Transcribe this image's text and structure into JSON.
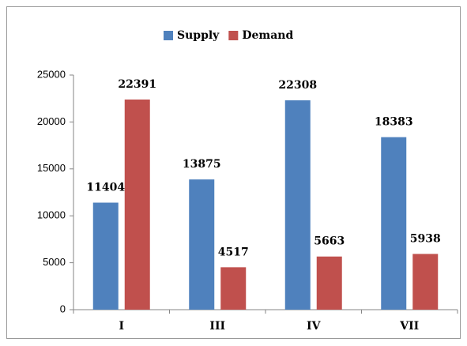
{
  "chart_data": {
    "type": "bar",
    "categories": [
      "I",
      "III",
      "IV",
      "VII"
    ],
    "series": [
      {
        "name": "Supply",
        "color": "#4f81bd",
        "values": [
          11404,
          13875,
          22308,
          18383
        ]
      },
      {
        "name": "Demand",
        "color": "#c0504d",
        "values": [
          22391,
          4517,
          5663,
          5938
        ]
      }
    ],
    "ylim": [
      0,
      25000
    ],
    "yticks": [
      0,
      5000,
      10000,
      15000,
      20000,
      25000
    ],
    "grid": false,
    "legend": "top",
    "value_labels_shown": true
  }
}
